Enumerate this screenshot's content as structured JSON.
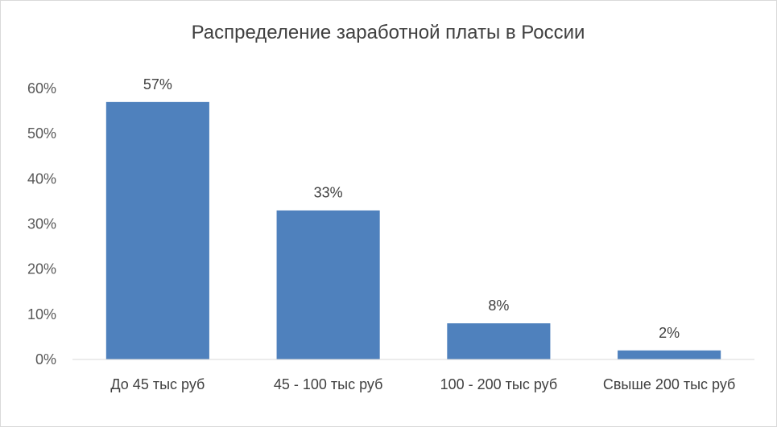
{
  "chart_data": {
    "type": "bar",
    "title": "Распределение заработной платы в России",
    "categories": [
      "До 45 тыс руб",
      "45 - 100 тыс руб",
      "100 - 200 тыс руб",
      "Свыше 200 тыс руб"
    ],
    "values": [
      57,
      33,
      8,
      2
    ],
    "data_labels": [
      "57%",
      "33%",
      "8%",
      "2%"
    ],
    "ylim": [
      0,
      60
    ],
    "yticks": [
      {
        "value": 0,
        "label": "0%"
      },
      {
        "value": 10,
        "label": "10%"
      },
      {
        "value": 20,
        "label": "20%"
      },
      {
        "value": 30,
        "label": "30%"
      },
      {
        "value": 40,
        "label": "40%"
      },
      {
        "value": 50,
        "label": "50%"
      },
      {
        "value": 60,
        "label": "60%"
      }
    ],
    "grid": false,
    "bar_color": "#4f81bd",
    "xlabel": "",
    "ylabel": ""
  }
}
